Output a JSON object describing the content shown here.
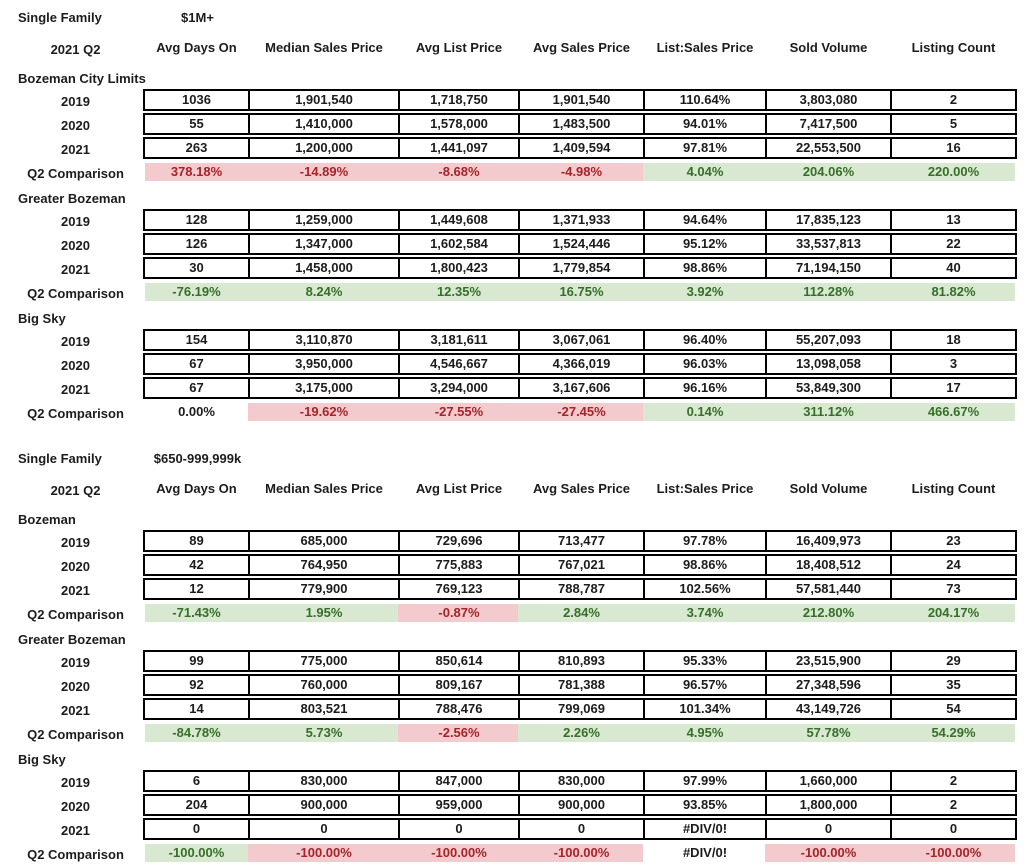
{
  "colors": {
    "positive_bg": "#d8e8d1",
    "positive_text": "#356f28",
    "negative_bg": "#f3cbce",
    "negative_text": "#a62328",
    "border": "#000000",
    "text": "#1c1c1c"
  },
  "columns": [
    "Avg Days On",
    "Median Sales Price",
    "Avg List Price",
    "Avg Sales Price",
    "List:Sales Price",
    "Sold Volume",
    "Listing Count"
  ],
  "tables": [
    {
      "title": "Single Family",
      "subtitle": "$1M+",
      "period": "2021 Q2",
      "sections": [
        {
          "name": "Bozeman City Limits",
          "rows": [
            {
              "label": "2019",
              "values": [
                "1036",
                "1,901,540",
                "1,718,750",
                "1,901,540",
                "110.64%",
                "3,803,080",
                "2"
              ]
            },
            {
              "label": "2020",
              "values": [
                "55",
                "1,410,000",
                "1,578,000",
                "1,483,500",
                "94.01%",
                "7,417,500",
                "5"
              ]
            },
            {
              "label": "2021",
              "values": [
                "263",
                "1,200,000",
                "1,441,097",
                "1,409,594",
                "97.81%",
                "22,553,500",
                "16"
              ]
            }
          ],
          "comparison": {
            "label": "Q2 Comparison",
            "cells": [
              {
                "value": "378.18%",
                "state": "negative"
              },
              {
                "value": "-14.89%",
                "state": "negative"
              },
              {
                "value": "-8.68%",
                "state": "negative"
              },
              {
                "value": "-4.98%",
                "state": "negative"
              },
              {
                "value": "4.04%",
                "state": "positive"
              },
              {
                "value": "204.06%",
                "state": "positive"
              },
              {
                "value": "220.00%",
                "state": "positive"
              }
            ]
          }
        },
        {
          "name": "Greater Bozeman",
          "rows": [
            {
              "label": "2019",
              "values": [
                "128",
                "1,259,000",
                "1,449,608",
                "1,371,933",
                "94.64%",
                "17,835,123",
                "13"
              ]
            },
            {
              "label": "2020",
              "values": [
                "126",
                "1,347,000",
                "1,602,584",
                "1,524,446",
                "95.12%",
                "33,537,813",
                "22"
              ]
            },
            {
              "label": "2021",
              "values": [
                "30",
                "1,458,000",
                "1,800,423",
                "1,779,854",
                "98.86%",
                "71,194,150",
                "40"
              ]
            }
          ],
          "comparison": {
            "label": "Q2 Comparison",
            "cells": [
              {
                "value": "-76.19%",
                "state": "positive"
              },
              {
                "value": "8.24%",
                "state": "positive"
              },
              {
                "value": "12.35%",
                "state": "positive"
              },
              {
                "value": "16.75%",
                "state": "positive"
              },
              {
                "value": "3.92%",
                "state": "positive"
              },
              {
                "value": "112.28%",
                "state": "positive"
              },
              {
                "value": "81.82%",
                "state": "positive"
              }
            ]
          }
        },
        {
          "name": "Big Sky",
          "rows": [
            {
              "label": "2019",
              "values": [
                "154",
                "3,110,870",
                "3,181,611",
                "3,067,061",
                "96.40%",
                "55,207,093",
                "18"
              ]
            },
            {
              "label": "2020",
              "values": [
                "67",
                "3,950,000",
                "4,546,667",
                "4,366,019",
                "96.03%",
                "13,098,058",
                "3"
              ]
            },
            {
              "label": "2021",
              "values": [
                "67",
                "3,175,000",
                "3,294,000",
                "3,167,606",
                "96.16%",
                "53,849,300",
                "17"
              ]
            }
          ],
          "comparison": {
            "label": "Q2 Comparison",
            "cells": [
              {
                "value": "0.00%",
                "state": "neutral"
              },
              {
                "value": "-19.62%",
                "state": "negative"
              },
              {
                "value": "-27.55%",
                "state": "negative"
              },
              {
                "value": "-27.45%",
                "state": "negative"
              },
              {
                "value": "0.14%",
                "state": "positive"
              },
              {
                "value": "311.12%",
                "state": "positive"
              },
              {
                "value": "466.67%",
                "state": "positive"
              }
            ]
          }
        }
      ]
    },
    {
      "title": "Single Family",
      "subtitle": "$650-999,999k",
      "period": "2021 Q2",
      "sections": [
        {
          "name": "Bozeman",
          "rows": [
            {
              "label": "2019",
              "values": [
                "89",
                "685,000",
                "729,696",
                "713,477",
                "97.78%",
                "16,409,973",
                "23"
              ]
            },
            {
              "label": "2020",
              "values": [
                "42",
                "764,950",
                "775,883",
                "767,021",
                "98.86%",
                "18,408,512",
                "24"
              ]
            },
            {
              "label": "2021",
              "values": [
                "12",
                "779,900",
                "769,123",
                "788,787",
                "102.56%",
                "57,581,440",
                "73"
              ]
            }
          ],
          "comparison": {
            "label": "Q2 Comparison",
            "cells": [
              {
                "value": "-71.43%",
                "state": "positive"
              },
              {
                "value": "1.95%",
                "state": "positive"
              },
              {
                "value": "-0.87%",
                "state": "negative"
              },
              {
                "value": "2.84%",
                "state": "positive"
              },
              {
                "value": "3.74%",
                "state": "positive"
              },
              {
                "value": "212.80%",
                "state": "positive"
              },
              {
                "value": "204.17%",
                "state": "positive"
              }
            ]
          }
        },
        {
          "name": "Greater Bozeman",
          "rows": [
            {
              "label": "2019",
              "values": [
                "99",
                "775,000",
                "850,614",
                "810,893",
                "95.33%",
                "23,515,900",
                "29"
              ]
            },
            {
              "label": "2020",
              "values": [
                "92",
                "760,000",
                "809,167",
                "781,388",
                "96.57%",
                "27,348,596",
                "35"
              ]
            },
            {
              "label": "2021",
              "values": [
                "14",
                "803,521",
                "788,476",
                "799,069",
                "101.34%",
                "43,149,726",
                "54"
              ]
            }
          ],
          "comparison": {
            "label": "Q2 Comparison",
            "cells": [
              {
                "value": "-84.78%",
                "state": "positive"
              },
              {
                "value": "5.73%",
                "state": "positive"
              },
              {
                "value": "-2.56%",
                "state": "negative"
              },
              {
                "value": "2.26%",
                "state": "positive"
              },
              {
                "value": "4.95%",
                "state": "positive"
              },
              {
                "value": "57.78%",
                "state": "positive"
              },
              {
                "value": "54.29%",
                "state": "positive"
              }
            ]
          }
        },
        {
          "name": "Big Sky",
          "rows": [
            {
              "label": "2019",
              "values": [
                "6",
                "830,000",
                "847,000",
                "830,000",
                "97.99%",
                "1,660,000",
                "2"
              ]
            },
            {
              "label": "2020",
              "values": [
                "204",
                "900,000",
                "959,000",
                "900,000",
                "93.85%",
                "1,800,000",
                "2"
              ]
            },
            {
              "label": "2021",
              "values": [
                "0",
                "0",
                "0",
                "0",
                "#DIV/0!",
                "0",
                "0"
              ]
            }
          ],
          "comparison": {
            "label": "Q2 Comparison",
            "cells": [
              {
                "value": "-100.00%",
                "state": "positive"
              },
              {
                "value": "-100.00%",
                "state": "negative"
              },
              {
                "value": "-100.00%",
                "state": "negative"
              },
              {
                "value": "-100.00%",
                "state": "negative"
              },
              {
                "value": "#DIV/0!",
                "state": "neutral"
              },
              {
                "value": "-100.00%",
                "state": "negative"
              },
              {
                "value": "-100.00%",
                "state": "negative"
              }
            ]
          }
        }
      ]
    }
  ]
}
